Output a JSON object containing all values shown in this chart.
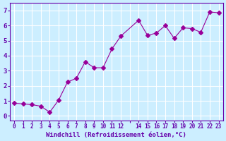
{
  "x": [
    0,
    1,
    2,
    3,
    4,
    5,
    6,
    7,
    8,
    9,
    10,
    11,
    12,
    14,
    15,
    16,
    17,
    18,
    19,
    20,
    21,
    22,
    23
  ],
  "y": [
    0.85,
    0.8,
    0.75,
    0.65,
    0.25,
    1.05,
    2.25,
    2.5,
    3.6,
    3.2,
    3.2,
    4.45,
    5.3,
    6.35,
    5.35,
    5.5,
    6.0,
    5.15,
    5.85,
    5.8,
    5.55,
    6.9,
    6.85
  ],
  "line_color": "#990099",
  "marker": "D",
  "marker_size": 3,
  "bg_color": "#cceeff",
  "grid_color": "#ffffff",
  "xlabel": "Windchill (Refroidissement éolien,°C)",
  "xlabel_color": "#6600aa",
  "tick_color": "#6600aa",
  "ylim": [
    -0.3,
    7.5
  ],
  "xlim": [
    -0.5,
    23.5
  ],
  "yticks": [
    0,
    1,
    2,
    3,
    4,
    5,
    6,
    7
  ],
  "xticks": [
    0,
    1,
    2,
    3,
    4,
    5,
    6,
    7,
    8,
    9,
    10,
    11,
    12,
    13,
    14,
    15,
    16,
    17,
    18,
    19,
    20,
    21,
    22,
    23
  ],
  "xtick_labels": [
    "0",
    "1",
    "2",
    "3",
    "4",
    "5",
    "6",
    "7",
    "8",
    "9",
    "10",
    "11",
    "12",
    "",
    "14",
    "15",
    "16",
    "17",
    "18",
    "19",
    "20",
    "21",
    "22",
    "23"
  ]
}
